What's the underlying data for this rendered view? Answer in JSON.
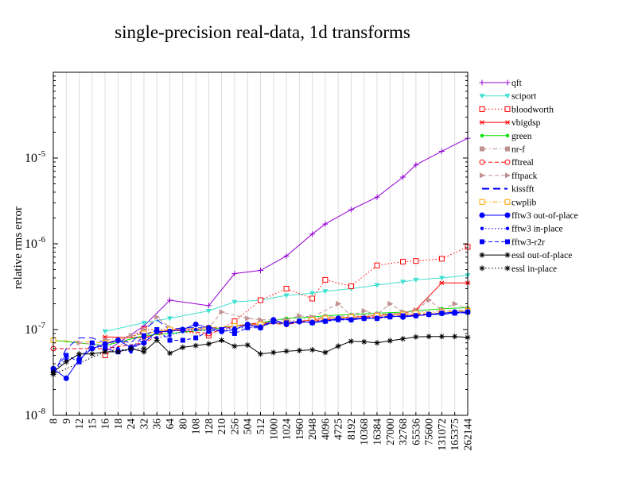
{
  "chart_data": {
    "type": "line",
    "title": "single-precision real-data, 1d transforms",
    "xlabel": "",
    "ylabel": "relative rms error",
    "yscale": "log",
    "ylim": [
      1e-08,
      0.0001
    ],
    "y_ticks": [
      {
        "value": 1e-08,
        "base": "10",
        "exp": "-8"
      },
      {
        "value": 1e-07,
        "base": "10",
        "exp": "-7"
      },
      {
        "value": 1e-06,
        "base": "10",
        "exp": "-6"
      },
      {
        "value": 1e-05,
        "base": "10",
        "exp": "-5"
      }
    ],
    "grid": "vertical",
    "legend_position": "right",
    "categories": [
      "8",
      "9",
      "12",
      "15",
      "16",
      "18",
      "24",
      "32",
      "36",
      "64",
      "80",
      "108",
      "128",
      "210",
      "256",
      "504",
      "512",
      "1000",
      "1024",
      "1960",
      "2048",
      "4096",
      "4725",
      "8192",
      "10368",
      "16384",
      "27000",
      "32768",
      "65536",
      "75600",
      "131072",
      "165375",
      "262144"
    ],
    "series": [
      {
        "name": "qft",
        "color": "#9400d3",
        "line": "solid",
        "marker": "plus",
        "values": [
          null,
          null,
          null,
          null,
          5.5e-08,
          null,
          null,
          1.1e-07,
          null,
          2.2e-07,
          null,
          null,
          1.9e-07,
          null,
          4.5e-07,
          null,
          4.9e-07,
          null,
          7.2e-07,
          null,
          1.3e-06,
          1.7e-06,
          null,
          2.5e-06,
          null,
          3.5e-06,
          null,
          6e-06,
          8.3e-06,
          null,
          1.2e-05,
          null,
          1.7e-05
        ]
      },
      {
        "name": "sciport",
        "color": "#40e0d0",
        "line": "solid",
        "marker": "tri-down",
        "values": [
          null,
          null,
          null,
          null,
          9.5e-08,
          null,
          null,
          1.2e-07,
          null,
          1.35e-07,
          null,
          null,
          1.65e-07,
          null,
          2.1e-07,
          null,
          2.2e-07,
          null,
          2.5e-07,
          null,
          2.65e-07,
          2.8e-07,
          null,
          3e-07,
          null,
          3.3e-07,
          null,
          3.6e-07,
          3.8e-07,
          null,
          4e-07,
          null,
          4.3e-07
        ]
      },
      {
        "name": "bloodworth",
        "color": "#ff0000",
        "line": "dotted",
        "marker": "square-open",
        "values": [
          null,
          null,
          null,
          null,
          5e-08,
          null,
          null,
          1e-07,
          null,
          1e-07,
          null,
          null,
          8.5e-08,
          null,
          1.25e-07,
          null,
          2.2e-07,
          null,
          3e-07,
          null,
          2.3e-07,
          3.8e-07,
          null,
          3.2e-07,
          null,
          5.6e-07,
          null,
          6.2e-07,
          6.3e-07,
          null,
          6.7e-07,
          null,
          9.2e-07
        ]
      },
      {
        "name": "vbigdsp",
        "color": "#ff0000",
        "line": "solid",
        "marker": "asterisk",
        "values": [
          null,
          null,
          null,
          null,
          8.2e-08,
          null,
          null,
          8e-08,
          null,
          1e-07,
          null,
          null,
          1e-07,
          null,
          1.1e-07,
          null,
          1.15e-07,
          null,
          1.2e-07,
          null,
          1.3e-07,
          1.35e-07,
          null,
          1.4e-07,
          null,
          1.45e-07,
          null,
          1.55e-07,
          1.7e-07,
          null,
          3.5e-07,
          null,
          3.5e-07
        ]
      },
      {
        "name": "green",
        "color": "#00e000",
        "line": "solid",
        "marker": "dot",
        "values": [
          7.5e-08,
          null,
          null,
          null,
          6.5e-08,
          null,
          null,
          8.5e-08,
          null,
          9e-08,
          null,
          null,
          1e-07,
          null,
          1.1e-07,
          null,
          1.2e-07,
          null,
          1.35e-07,
          null,
          1.4e-07,
          1.45e-07,
          null,
          1.5e-07,
          null,
          1.55e-07,
          null,
          1.6e-07,
          1.65e-07,
          null,
          1.75e-07,
          null,
          1.8e-07
        ]
      },
      {
        "name": "nr-f",
        "color": "#c09090",
        "line": "dashdot",
        "marker": "square",
        "values": [
          null,
          null,
          null,
          null,
          7.5e-08,
          null,
          null,
          9e-08,
          null,
          1e-07,
          null,
          null,
          1e-07,
          null,
          1.1e-07,
          null,
          1.2e-07,
          null,
          1.25e-07,
          null,
          1.35e-07,
          1.4e-07,
          null,
          1.45e-07,
          null,
          1.5e-07,
          null,
          1.55e-07,
          1.6e-07,
          null,
          1.65e-07,
          null,
          1.7e-07
        ]
      },
      {
        "name": "fftreal",
        "color": "#ff0000",
        "line": "dashed",
        "marker": "circle-open",
        "values": [
          6e-08,
          null,
          null,
          null,
          6e-08,
          null,
          null,
          7e-08,
          null,
          1e-07,
          null,
          null,
          9e-08,
          null,
          1.1e-07,
          null,
          1.2e-07,
          null,
          1.15e-07,
          null,
          1.25e-07,
          1.3e-07,
          null,
          1.35e-07,
          null,
          1.4e-07,
          null,
          1.45e-07,
          1.5e-07,
          null,
          1.55e-07,
          null,
          1.6e-07
        ]
      },
      {
        "name": "fftpack",
        "color": "#c09090",
        "line": "dashed",
        "marker": "tri-right",
        "values": [
          null,
          null,
          7e-08,
          null,
          6.5e-08,
          null,
          8.5e-08,
          1e-07,
          1.4e-07,
          1.05e-07,
          1e-07,
          null,
          1.05e-07,
          1.6e-07,
          null,
          1.35e-07,
          1.3e-07,
          null,
          1.3e-07,
          1.45e-07,
          1.4e-07,
          null,
          2e-07,
          1.45e-07,
          1.65e-07,
          1.5e-07,
          2e-07,
          1.6e-07,
          1.65e-07,
          2.2e-07,
          1.7e-07,
          2e-07,
          1.75e-07
        ]
      },
      {
        "name": "kissfft",
        "color": "#0000ff",
        "line": "longdash",
        "marker": "none",
        "values": [
          3e-08,
          6e-08,
          8e-08,
          8e-08,
          7e-08,
          7.5e-08,
          7e-08,
          1e-07,
          1.3e-07,
          1e-07,
          1.05e-07,
          1.05e-07,
          1.05e-07,
          1.05e-07,
          1.1e-07,
          1.1e-07,
          1.1e-07,
          1.2e-07,
          1.15e-07,
          1.25e-07,
          1.2e-07,
          1.3e-07,
          1.3e-07,
          1.35e-07,
          1.35e-07,
          1.4e-07,
          1.4e-07,
          1.45e-07,
          1.45e-07,
          1.5e-07,
          1.5e-07,
          1.55e-07,
          1.6e-07
        ]
      },
      {
        "name": "cwplib",
        "color": "#ffa500",
        "line": "dashdot",
        "marker": "square-open",
        "values": [
          7.5e-08,
          null,
          null,
          null,
          7e-08,
          null,
          null,
          9e-08,
          null,
          1e-07,
          null,
          null,
          1.05e-07,
          null,
          1.1e-07,
          null,
          1.15e-07,
          null,
          1.2e-07,
          null,
          1.3e-07,
          1.35e-07,
          null,
          1.4e-07,
          null,
          1.45e-07,
          null,
          1.5e-07,
          1.55e-07,
          null,
          1.6e-07,
          null,
          1.65e-07
        ]
      },
      {
        "name": "fftw3 out-of-place",
        "color": "#0000ff",
        "line": "solid",
        "marker": "filled-circle",
        "values": [
          3.5e-08,
          2.7e-08,
          4.5e-08,
          6e-08,
          6.8e-08,
          7.5e-08,
          6.2e-08,
          7e-08,
          9.5e-08,
          9.5e-08,
          1e-07,
          1.15e-07,
          1.05e-07,
          9.5e-08,
          1e-07,
          1.15e-07,
          1.05e-07,
          1.3e-07,
          1.15e-07,
          1.25e-07,
          1.2e-07,
          1.25e-07,
          1.35e-07,
          1.3e-07,
          1.35e-07,
          1.35e-07,
          1.45e-07,
          1.4e-07,
          1.45e-07,
          1.5e-07,
          1.55e-07,
          1.6e-07,
          1.6e-07
        ]
      },
      {
        "name": "fftw3 in-place",
        "color": "#0000ff",
        "line": "dotted",
        "marker": "dot",
        "values": [
          3.3e-08,
          4.5e-08,
          5e-08,
          6e-08,
          6.5e-08,
          6e-08,
          5.5e-08,
          8e-08,
          8e-08,
          8.5e-08,
          9.5e-08,
          1e-07,
          9.5e-08,
          1e-07,
          1.05e-07,
          1.05e-07,
          1.1e-07,
          1.2e-07,
          1.2e-07,
          1.2e-07,
          1.25e-07,
          1.25e-07,
          1.3e-07,
          1.3e-07,
          1.35e-07,
          1.35e-07,
          1.4e-07,
          1.45e-07,
          1.45e-07,
          1.5e-07,
          1.5e-07,
          1.55e-07,
          1.55e-07
        ]
      },
      {
        "name": "fftw3-r2r",
        "color": "#0000ff",
        "line": "dashed",
        "marker": "filled-square",
        "values": [
          3.3e-08,
          5e-08,
          4.2e-08,
          7e-08,
          6e-08,
          5.5e-08,
          6e-08,
          8.5e-08,
          1e-07,
          7.5e-08,
          7.5e-08,
          8e-08,
          9.5e-08,
          1e-07,
          9e-08,
          1.05e-07,
          1.05e-07,
          1.25e-07,
          1.2e-07,
          1.25e-07,
          1.2e-07,
          1.25e-07,
          1.3e-07,
          1.3e-07,
          1.35e-07,
          1.35e-07,
          1.4e-07,
          1.45e-07,
          1.45e-07,
          1.5e-07,
          1.55e-07,
          1.55e-07,
          1.6e-07
        ]
      },
      {
        "name": "essl out-of-place",
        "color": "#000000",
        "line": "solid",
        "marker": "star",
        "values": [
          3.2e-08,
          4.2e-08,
          5.2e-08,
          5.2e-08,
          5.5e-08,
          5.5e-08,
          6e-08,
          5.5e-08,
          7.5e-08,
          5.3e-08,
          6.2e-08,
          6.5e-08,
          6.8e-08,
          7.5e-08,
          6.4e-08,
          6.6e-08,
          5.2e-08,
          5.4e-08,
          5.6e-08,
          5.7e-08,
          5.8e-08,
          5.4e-08,
          6.4e-08,
          7.3e-08,
          7.2e-08,
          7e-08,
          7.4e-08,
          7.8e-08,
          8.2e-08,
          8.3e-08,
          8.3e-08,
          8.3e-08,
          8.1e-08
        ]
      },
      {
        "name": "essl in-place",
        "color": "#000000",
        "line": "dotted",
        "marker": "star",
        "values": [
          3e-08,
          null,
          null,
          null,
          5.5e-08,
          null,
          null,
          6e-08,
          null,
          null,
          null,
          null,
          null,
          null,
          null,
          null,
          null,
          null,
          null,
          null,
          null,
          null,
          null,
          null,
          null,
          null,
          null,
          null,
          null,
          null,
          null,
          null,
          null
        ]
      }
    ]
  }
}
